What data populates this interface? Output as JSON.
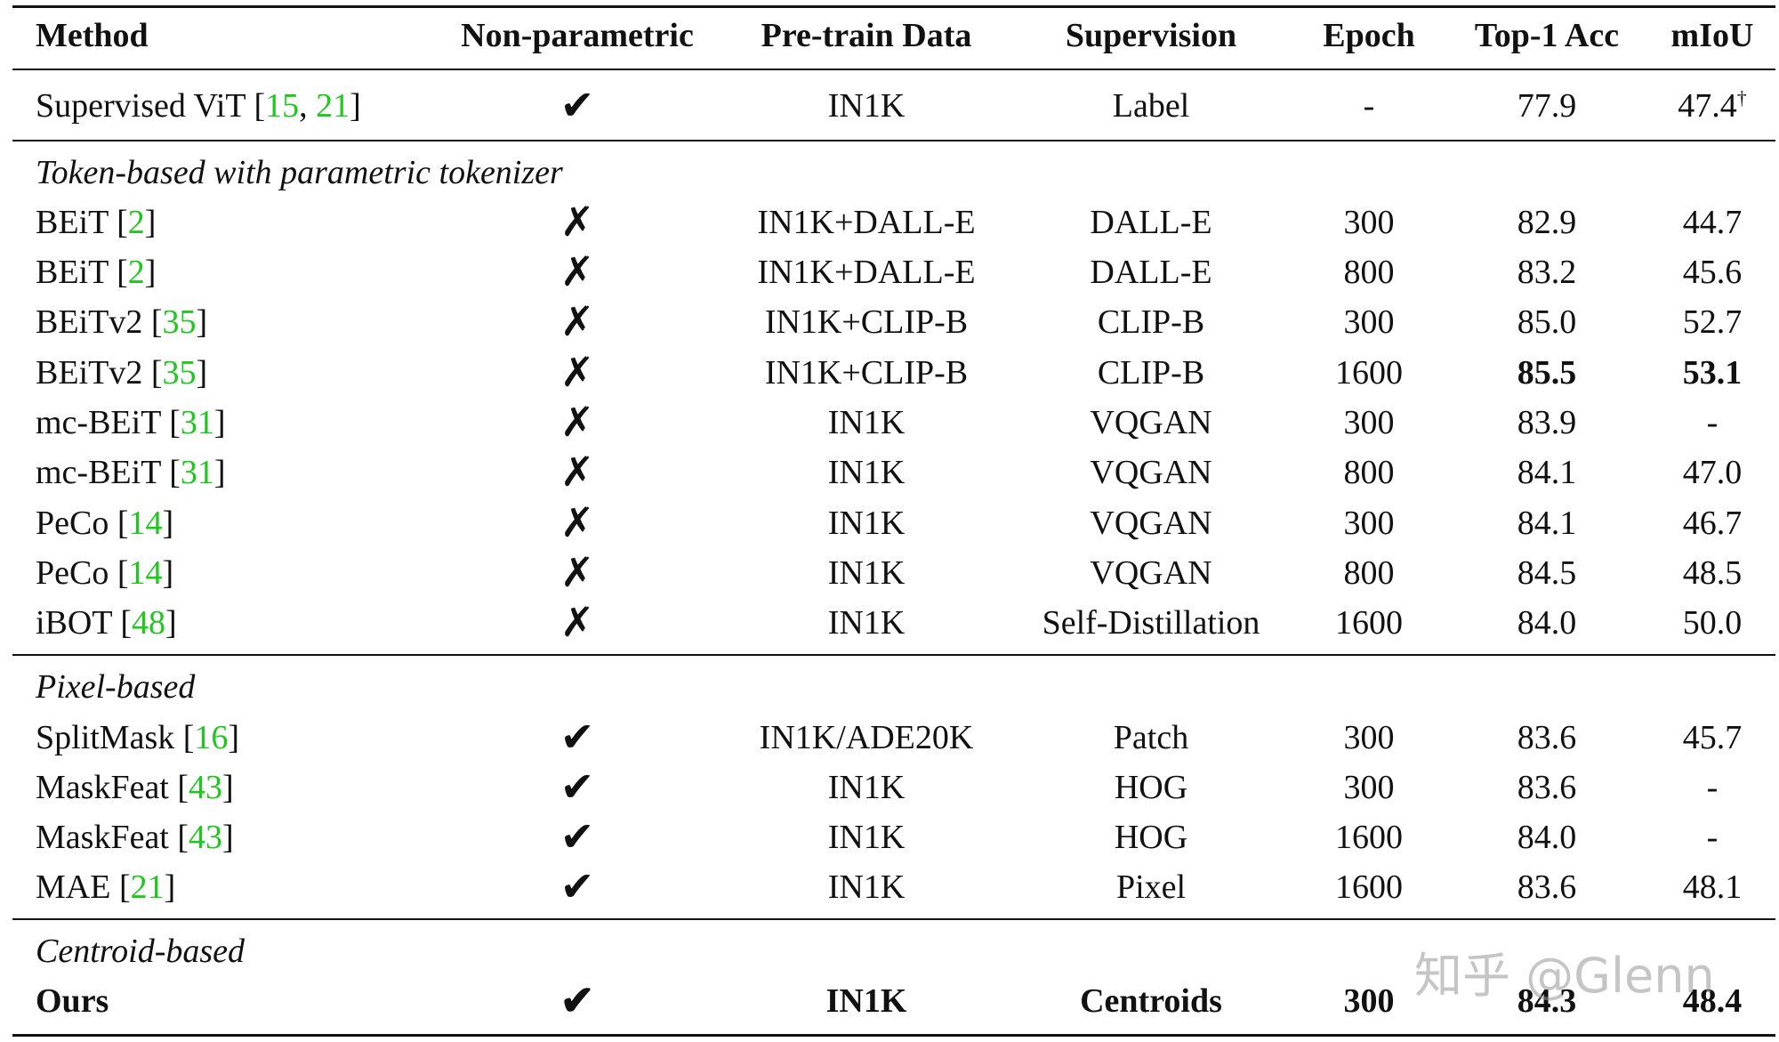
{
  "header": [
    "Method",
    "Non-parametric",
    "Pre-train Data",
    "Supervision",
    "Epoch",
    "Top-1 Acc",
    "mIoU"
  ],
  "baseline": {
    "method": "Supervised ViT",
    "cites": [
      "15",
      "21"
    ],
    "nonparam": "✔",
    "data": "IN1K",
    "supervision": "Label",
    "epoch": "-",
    "top1": "77.9",
    "miou": "47.4",
    "miou_sup": "†"
  },
  "sections": [
    {
      "title": "Token-based with parametric tokenizer",
      "rows": [
        {
          "method": "BEiT",
          "cite": "2",
          "nonparam": "✗",
          "data": "IN1K+DALL-E",
          "supervision": "DALL-E",
          "epoch": "300",
          "top1": "82.9",
          "miou": "44.7"
        },
        {
          "method": "BEiT",
          "cite": "2",
          "nonparam": "✗",
          "data": "IN1K+DALL-E",
          "supervision": "DALL-E",
          "epoch": "800",
          "top1": "83.2",
          "miou": "45.6"
        },
        {
          "method": "BEiTv2",
          "cite": "35",
          "nonparam": "✗",
          "data": "IN1K+CLIP-B",
          "supervision": "CLIP-B",
          "epoch": "300",
          "top1": "85.0",
          "miou": "52.7"
        },
        {
          "method": "BEiTv2",
          "cite": "35",
          "nonparam": "✗",
          "data": "IN1K+CLIP-B",
          "supervision": "CLIP-B",
          "epoch": "1600",
          "top1": "85.5",
          "miou": "53.1"
        },
        {
          "method": "mc-BEiT",
          "cite": "31",
          "nonparam": "✗",
          "data": "IN1K",
          "supervision": "VQGAN",
          "epoch": "300",
          "top1": "83.9",
          "miou": "-"
        },
        {
          "method": "mc-BEiT",
          "cite": "31",
          "nonparam": "✗",
          "data": "IN1K",
          "supervision": "VQGAN",
          "epoch": "800",
          "top1": "84.1",
          "miou": "47.0"
        },
        {
          "method": "PeCo",
          "cite": "14",
          "nonparam": "✗",
          "data": "IN1K",
          "supervision": "VQGAN",
          "epoch": "300",
          "top1": "84.1",
          "miou": "46.7"
        },
        {
          "method": "PeCo",
          "cite": "14",
          "nonparam": "✗",
          "data": "IN1K",
          "supervision": "VQGAN",
          "epoch": "800",
          "top1": "84.5",
          "miou": "48.5"
        },
        {
          "method": "iBOT",
          "cite": "48",
          "nonparam": "✗",
          "data": "IN1K",
          "supervision": "Self-Distillation",
          "epoch": "1600",
          "top1": "84.0",
          "miou": "50.0"
        }
      ]
    },
    {
      "title": "Pixel-based",
      "rows": [
        {
          "method": "SplitMask",
          "cite": "16",
          "nonparam": "✔",
          "data": "IN1K/ADE20K",
          "supervision": "Patch",
          "epoch": "300",
          "top1": "83.6",
          "miou": "45.7"
        },
        {
          "method": "MaskFeat",
          "cite": "43",
          "nonparam": "✔",
          "data": "IN1K",
          "supervision": "HOG",
          "epoch": "300",
          "top1": "83.6",
          "miou": "-"
        },
        {
          "method": "MaskFeat",
          "cite": "43",
          "nonparam": "✔",
          "data": "IN1K",
          "supervision": "HOG",
          "epoch": "1600",
          "top1": "84.0",
          "miou": "-"
        },
        {
          "method": "MAE",
          "cite": "21",
          "nonparam": "✔",
          "data": "IN1K",
          "supervision": "Pixel",
          "epoch": "1600",
          "top1": "83.6",
          "miou": "48.1"
        }
      ]
    },
    {
      "title": "Centroid-based",
      "rows": [
        {
          "method": "Ours",
          "nonparam": "✔",
          "data": "IN1K",
          "supervision": "Centroids",
          "epoch": "300",
          "top1": "84.3",
          "miou": "48.4"
        }
      ]
    }
  ],
  "watermark": "知乎 @Glenn"
}
